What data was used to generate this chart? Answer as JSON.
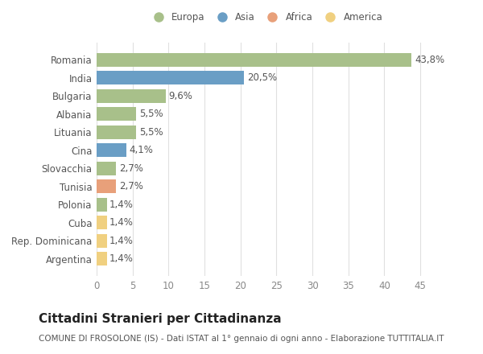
{
  "countries": [
    "Romania",
    "India",
    "Bulgaria",
    "Albania",
    "Lituania",
    "Cina",
    "Slovacchia",
    "Tunisia",
    "Polonia",
    "Cuba",
    "Rep. Dominicana",
    "Argentina"
  ],
  "values": [
    43.8,
    20.5,
    9.6,
    5.5,
    5.5,
    4.1,
    2.7,
    2.7,
    1.4,
    1.4,
    1.4,
    1.4
  ],
  "labels": [
    "43,8%",
    "20,5%",
    "9,6%",
    "5,5%",
    "5,5%",
    "4,1%",
    "2,7%",
    "2,7%",
    "1,4%",
    "1,4%",
    "1,4%",
    "1,4%"
  ],
  "regions": [
    "Europa",
    "Asia",
    "Europa",
    "Europa",
    "Europa",
    "Asia",
    "Europa",
    "Africa",
    "Europa",
    "America",
    "America",
    "America"
  ],
  "colors": {
    "Europa": "#a8c08a",
    "Asia": "#6a9ec5",
    "Africa": "#e8a07a",
    "America": "#f0d080"
  },
  "legend_order": [
    "Europa",
    "Asia",
    "Africa",
    "America"
  ],
  "title": "Cittadini Stranieri per Cittadinanza",
  "subtitle": "COMUNE DI FROSOLONE (IS) - Dati ISTAT al 1° gennaio di ogni anno - Elaborazione TUTTITALIA.IT",
  "xlim": [
    0,
    47
  ],
  "xticks": [
    0,
    5,
    10,
    15,
    20,
    25,
    30,
    35,
    40,
    45
  ],
  "background_color": "#ffffff",
  "grid_color": "#e0e0e0",
  "bar_height": 0.75,
  "label_fontsize": 8.5,
  "tick_fontsize": 8.5,
  "title_fontsize": 11,
  "subtitle_fontsize": 7.5
}
